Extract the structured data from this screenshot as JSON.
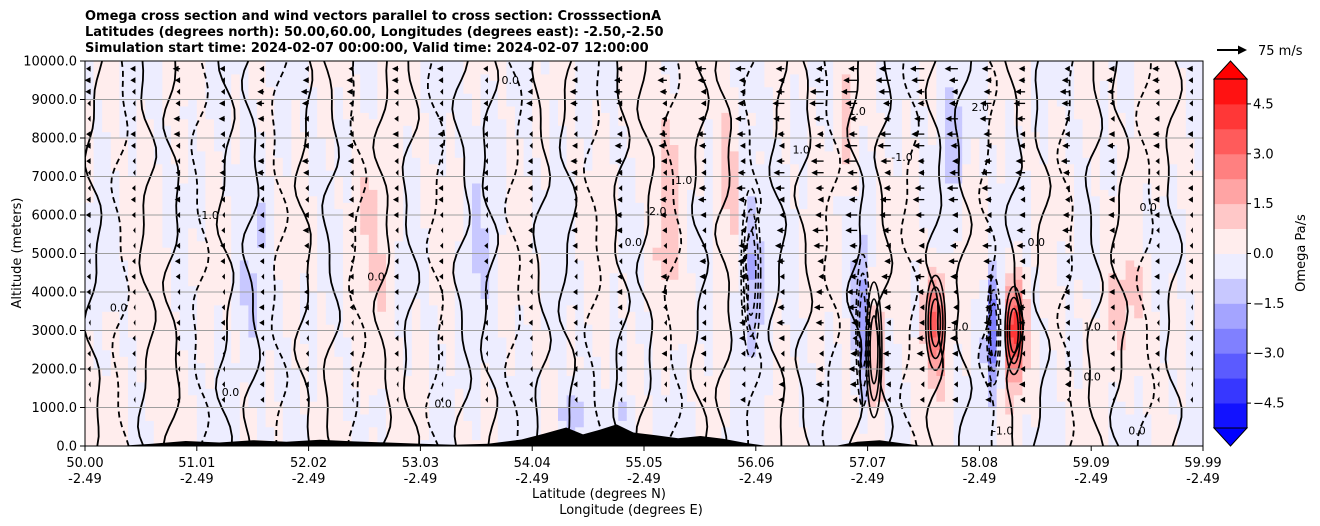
{
  "chart_data": {
    "type": "heatmap",
    "title_lines": [
      "Omega cross section and wind vectors parallel to cross section: CrosssectionA",
      "Latitudes (degrees north): 50.00,60.00, Longitudes (degrees east): -2.50,-2.50",
      "Simulation start time: 2024-02-07 00:00:00, Valid time: 2024-02-07 12:00:00"
    ],
    "xlabel_lines": [
      "Latitude (degrees N)",
      "Longitude (degrees E)"
    ],
    "ylabel": "Altitude (meters)",
    "x_ticks": [
      {
        "lat": "50.00",
        "lon": "-2.49"
      },
      {
        "lat": "51.01",
        "lon": "-2.49"
      },
      {
        "lat": "52.02",
        "lon": "-2.49"
      },
      {
        "lat": "53.03",
        "lon": "-2.49"
      },
      {
        "lat": "54.04",
        "lon": "-2.49"
      },
      {
        "lat": "55.05",
        "lon": "-2.49"
      },
      {
        "lat": "56.06",
        "lon": "-2.49"
      },
      {
        "lat": "57.07",
        "lon": "-2.49"
      },
      {
        "lat": "58.08",
        "lon": "-2.49"
      },
      {
        "lat": "59.09",
        "lon": "-2.49"
      },
      {
        "lat": "59.99",
        "lon": "-2.49"
      }
    ],
    "xlim": [
      50.0,
      59.99
    ],
    "ylim": [
      0,
      10000
    ],
    "y_ticks": [
      "0.0",
      "1000.0",
      "2000.0",
      "3000.0",
      "4000.0",
      "5000.0",
      "6000.0",
      "7000.0",
      "8000.0",
      "9000.0",
      "10000.0"
    ],
    "y_tick_values": [
      0,
      1000,
      2000,
      3000,
      4000,
      5000,
      6000,
      7000,
      8000,
      9000,
      10000
    ],
    "grid": "horizontal",
    "colorbar": {
      "label": "Omega Pa/s",
      "range": [
        -5.25,
        5.25
      ],
      "ticks": [
        "−4.5",
        "−3.0",
        "−1.5",
        "0.0",
        "1.5",
        "3.0",
        "4.5"
      ],
      "tick_values": [
        -4.5,
        -3.0,
        -1.5,
        0.0,
        1.5,
        3.0,
        4.5
      ],
      "extend": "both",
      "colormap": "bwr"
    },
    "quiver_key": {
      "label": "75 m/s",
      "speed": 75
    },
    "omega_features": [
      {
        "lat": 57.05,
        "alt": 2500,
        "value": 1.8,
        "width": 0.08,
        "height": 4000
      },
      {
        "lat": 56.95,
        "alt": 3000,
        "value": -2.2,
        "width": 0.07,
        "height": 4500
      },
      {
        "lat": 57.6,
        "alt": 3200,
        "value": 3.4,
        "width": 0.1,
        "height": 2800
      },
      {
        "lat": 58.3,
        "alt": 3000,
        "value": 5.0,
        "width": 0.09,
        "height": 2600
      },
      {
        "lat": 58.12,
        "alt": 3000,
        "value": -3.2,
        "width": 0.07,
        "height": 3200
      },
      {
        "lat": 55.95,
        "alt": 4500,
        "value": -1.8,
        "width": 0.1,
        "height": 5000
      },
      {
        "lat": 55.2,
        "alt": 6500,
        "value": 1.1,
        "width": 0.15,
        "height": 6000
      },
      {
        "lat": 55.75,
        "alt": 7000,
        "value": 1.0,
        "width": 0.12,
        "height": 5000
      },
      {
        "lat": 56.8,
        "alt": 8500,
        "value": 1.2,
        "width": 0.1,
        "height": 3000
      },
      {
        "lat": 57.75,
        "alt": 8000,
        "value": -1.2,
        "width": 0.1,
        "height": 4000
      },
      {
        "lat": 54.35,
        "alt": 800,
        "value": -1.5,
        "width": 0.12,
        "height": 1400
      },
      {
        "lat": 54.8,
        "alt": 900,
        "value": -1.0,
        "width": 0.1,
        "height": 1200
      },
      {
        "lat": 52.6,
        "alt": 5000,
        "value": 0.6,
        "width": 0.2,
        "height": 8000
      },
      {
        "lat": 51.5,
        "alt": 4000,
        "value": -0.6,
        "width": 0.15,
        "height": 7000
      },
      {
        "lat": 53.5,
        "alt": 5000,
        "value": -0.5,
        "width": 0.15,
        "height": 8000
      },
      {
        "lat": 59.3,
        "alt": 3500,
        "value": 0.8,
        "width": 0.25,
        "height": 3500
      },
      {
        "lat": 50.6,
        "alt": 3000,
        "value": 0.5,
        "width": 0.15,
        "height": 5000
      },
      {
        "lat": 59.6,
        "alt": 8500,
        "value": 0.5,
        "width": 0.2,
        "height": 4000
      }
    ],
    "contour_labels": [
      {
        "text": "-1.0",
        "lat": 51.1,
        "alt": 5900
      },
      {
        "text": "0.0",
        "lat": 52.6,
        "alt": 4300
      },
      {
        "text": "0.0",
        "lat": 59.5,
        "alt": 6100
      },
      {
        "text": "1.0",
        "lat": 55.35,
        "alt": 6800
      },
      {
        "text": "-2.0",
        "lat": 55.1,
        "alt": 6000
      },
      {
        "text": "1.0",
        "lat": 56.4,
        "alt": 7600
      },
      {
        "text": "-1.0",
        "lat": 57.8,
        "alt": 3000
      },
      {
        "text": "1.0",
        "lat": 59.0,
        "alt": 3000
      },
      {
        "text": "0.0",
        "lat": 59.0,
        "alt": 1700
      },
      {
        "text": "0.0",
        "lat": 53.2,
        "alt": 1000
      },
      {
        "text": "-1.0",
        "lat": 58.2,
        "alt": 300
      },
      {
        "text": "0.0",
        "lat": 59.4,
        "alt": 300
      },
      {
        "text": "0.0",
        "lat": 50.3,
        "alt": 3500
      },
      {
        "text": "0.0",
        "lat": 51.3,
        "alt": 1300
      },
      {
        "text": "1.0",
        "lat": 56.9,
        "alt": 8600
      },
      {
        "text": "0.0",
        "lat": 53.8,
        "alt": 9400
      },
      {
        "text": "-1.0",
        "lat": 57.3,
        "alt": 7400
      },
      {
        "text": "0.0",
        "lat": 54.9,
        "alt": 5200
      },
      {
        "text": "2.0",
        "lat": 58.0,
        "alt": 8700
      },
      {
        "text": "0.0",
        "lat": 58.5,
        "alt": 5200
      }
    ],
    "terrain": [
      {
        "lat": 50.3,
        "alt": 0
      },
      {
        "lat": 50.6,
        "alt": 60
      },
      {
        "lat": 50.9,
        "alt": 130
      },
      {
        "lat": 51.2,
        "alt": 90
      },
      {
        "lat": 51.5,
        "alt": 150
      },
      {
        "lat": 51.8,
        "alt": 110
      },
      {
        "lat": 52.1,
        "alt": 160
      },
      {
        "lat": 52.4,
        "alt": 120
      },
      {
        "lat": 52.7,
        "alt": 90
      },
      {
        "lat": 53.0,
        "alt": 60
      },
      {
        "lat": 53.3,
        "alt": 30
      },
      {
        "lat": 53.6,
        "alt": 60
      },
      {
        "lat": 53.9,
        "alt": 170
      },
      {
        "lat": 54.1,
        "alt": 320
      },
      {
        "lat": 54.3,
        "alt": 480
      },
      {
        "lat": 54.45,
        "alt": 300
      },
      {
        "lat": 54.6,
        "alt": 420
      },
      {
        "lat": 54.75,
        "alt": 560
      },
      {
        "lat": 54.9,
        "alt": 350
      },
      {
        "lat": 55.1,
        "alt": 280
      },
      {
        "lat": 55.3,
        "alt": 200
      },
      {
        "lat": 55.5,
        "alt": 260
      },
      {
        "lat": 55.7,
        "alt": 190
      },
      {
        "lat": 55.9,
        "alt": 80
      },
      {
        "lat": 56.1,
        "alt": 0
      },
      {
        "lat": 56.7,
        "alt": 0
      },
      {
        "lat": 56.9,
        "alt": 110
      },
      {
        "lat": 57.1,
        "alt": 150
      },
      {
        "lat": 57.3,
        "alt": 70
      },
      {
        "lat": 57.5,
        "alt": 0
      }
    ],
    "wind_rows_alt": [
      9800,
      9500,
      9200,
      8900,
      8500,
      8100,
      7800,
      7400,
      7100,
      6700,
      6400,
      6000,
      5600,
      5200,
      4800,
      4400,
      4000,
      3600,
      3200,
      2800,
      2400,
      2000,
      1600,
      1200
    ],
    "wind_cols_lat": [
      50.05,
      50.45,
      50.85,
      51.25,
      51.6,
      52.0,
      52.4,
      52.8,
      53.2,
      53.6,
      54.0,
      54.4,
      54.8,
      55.2,
      55.55,
      55.9,
      56.25,
      56.6,
      56.9,
      57.2,
      57.5,
      57.8,
      58.1,
      58.4,
      58.8,
      59.2,
      59.6,
      59.9
    ],
    "wind_cols_speed": [
      -18,
      -16,
      -22,
      -20,
      -25,
      -24,
      -22,
      -20,
      -18,
      -16,
      -20,
      -24,
      -26,
      -28,
      -30,
      -32,
      -38,
      -45,
      -48,
      -44,
      -42,
      -40,
      -38,
      -35,
      -30,
      -25,
      -22,
      -18
    ]
  }
}
